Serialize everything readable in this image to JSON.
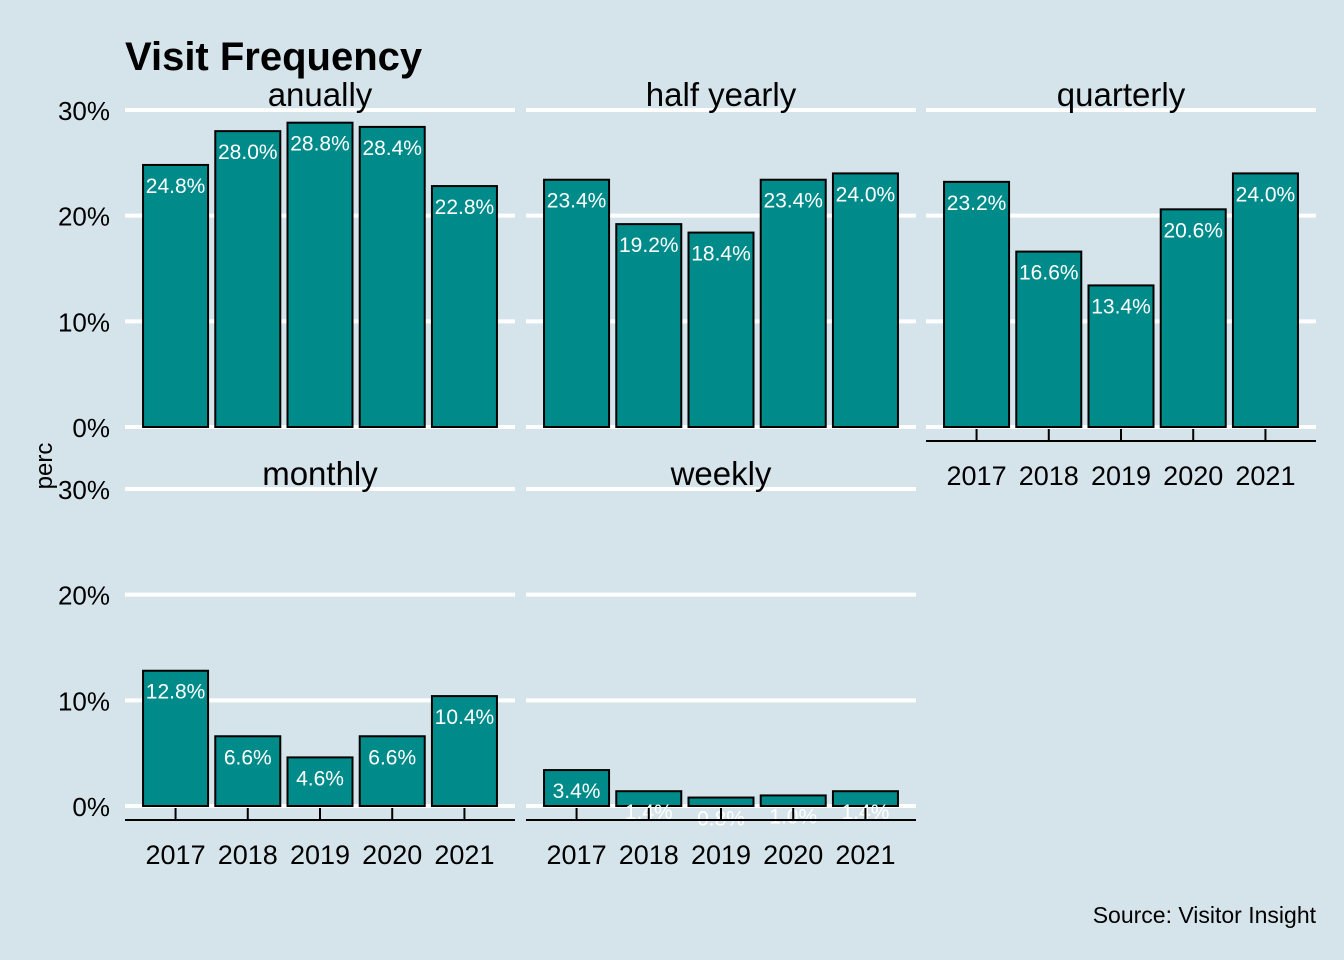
{
  "chart_data": {
    "type": "bar",
    "title": "Visit Frequency",
    "ylabel": "perc",
    "xlabel": "",
    "caption": "Source: Visitor Insight",
    "ylim": [
      0,
      30
    ],
    "yticks": [
      "0%",
      "10%",
      "20%",
      "30%"
    ],
    "bar_color": "#008b8b",
    "background_color": "#d5e4eb",
    "grid": true,
    "categories": [
      "2017",
      "2018",
      "2019",
      "2020",
      "2021"
    ],
    "panels": [
      {
        "name": "anually",
        "values": [
          24.8,
          28.0,
          28.8,
          28.4,
          22.8
        ],
        "labels": [
          "24.8%",
          "28.0%",
          "28.8%",
          "28.4%",
          "22.8%"
        ]
      },
      {
        "name": "half yearly",
        "values": [
          23.4,
          19.2,
          18.4,
          23.4,
          24.0
        ],
        "labels": [
          "23.4%",
          "19.2%",
          "18.4%",
          "23.4%",
          "24.0%"
        ]
      },
      {
        "name": "quarterly",
        "values": [
          23.2,
          16.6,
          13.4,
          20.6,
          24.0
        ],
        "labels": [
          "23.2%",
          "16.6%",
          "13.4%",
          "20.6%",
          "24.0%"
        ]
      },
      {
        "name": "monthly",
        "values": [
          12.8,
          6.6,
          4.6,
          6.6,
          10.4
        ],
        "labels": [
          "12.8%",
          "6.6%",
          "4.6%",
          "6.6%",
          "10.4%"
        ]
      },
      {
        "name": "weekly",
        "values": [
          3.4,
          1.4,
          0.8,
          1.0,
          1.4
        ],
        "labels": [
          "3.4%",
          "1.4%",
          "0.8%",
          "1.0%",
          "1.4%"
        ]
      }
    ]
  }
}
